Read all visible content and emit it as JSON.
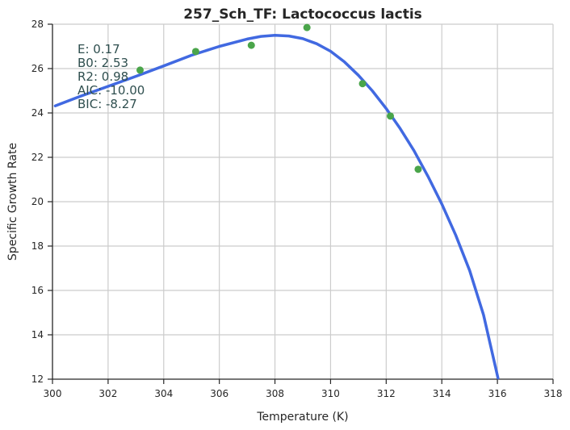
{
  "chart_data": {
    "type": "scatter",
    "title": "257_Sch_TF: Lactococcus lactis",
    "xlabel": "Temperature (K)",
    "ylabel": "Specific Growth Rate",
    "xlim": [
      300,
      318
    ],
    "ylim": [
      12,
      28
    ],
    "xticks": [
      300,
      302,
      304,
      306,
      308,
      310,
      312,
      314,
      316,
      318
    ],
    "yticks": [
      12,
      14,
      16,
      18,
      20,
      22,
      24,
      26,
      28
    ],
    "grid": true,
    "series": [
      {
        "kind": "points",
        "color": "#4aa54a",
        "points": [
          {
            "x": 303.15,
            "y": 25.93
          },
          {
            "x": 305.15,
            "y": 26.77
          },
          {
            "x": 307.15,
            "y": 27.05
          },
          {
            "x": 309.15,
            "y": 27.85
          },
          {
            "x": 311.15,
            "y": 25.32
          },
          {
            "x": 312.15,
            "y": 23.86
          },
          {
            "x": 313.15,
            "y": 21.46
          }
        ]
      },
      {
        "kind": "line",
        "color": "#4169e1",
        "points": [
          {
            "x": 300.1,
            "y": 24.32
          },
          {
            "x": 301.0,
            "y": 24.75
          },
          {
            "x": 302.0,
            "y": 25.2
          },
          {
            "x": 303.0,
            "y": 25.65
          },
          {
            "x": 304.0,
            "y": 26.12
          },
          {
            "x": 305.0,
            "y": 26.6
          },
          {
            "x": 306.0,
            "y": 27.0
          },
          {
            "x": 307.0,
            "y": 27.33
          },
          {
            "x": 307.5,
            "y": 27.45
          },
          {
            "x": 308.0,
            "y": 27.5
          },
          {
            "x": 308.5,
            "y": 27.47
          },
          {
            "x": 309.0,
            "y": 27.35
          },
          {
            "x": 309.5,
            "y": 27.12
          },
          {
            "x": 310.0,
            "y": 26.78
          },
          {
            "x": 310.5,
            "y": 26.3
          },
          {
            "x": 311.0,
            "y": 25.7
          },
          {
            "x": 311.5,
            "y": 25.0
          },
          {
            "x": 312.0,
            "y": 24.2
          },
          {
            "x": 312.5,
            "y": 23.3
          },
          {
            "x": 313.0,
            "y": 22.3
          },
          {
            "x": 313.5,
            "y": 21.15
          },
          {
            "x": 314.0,
            "y": 19.9
          },
          {
            "x": 314.5,
            "y": 18.5
          },
          {
            "x": 315.0,
            "y": 16.9
          },
          {
            "x": 315.5,
            "y": 14.9
          },
          {
            "x": 316.02,
            "y": 12.05
          }
        ]
      }
    ],
    "annotations": [
      "E:  0.17",
      "B0:  2.53",
      "R2:  0.98",
      "AIC: -10.00",
      "BIC: -8.27"
    ]
  }
}
